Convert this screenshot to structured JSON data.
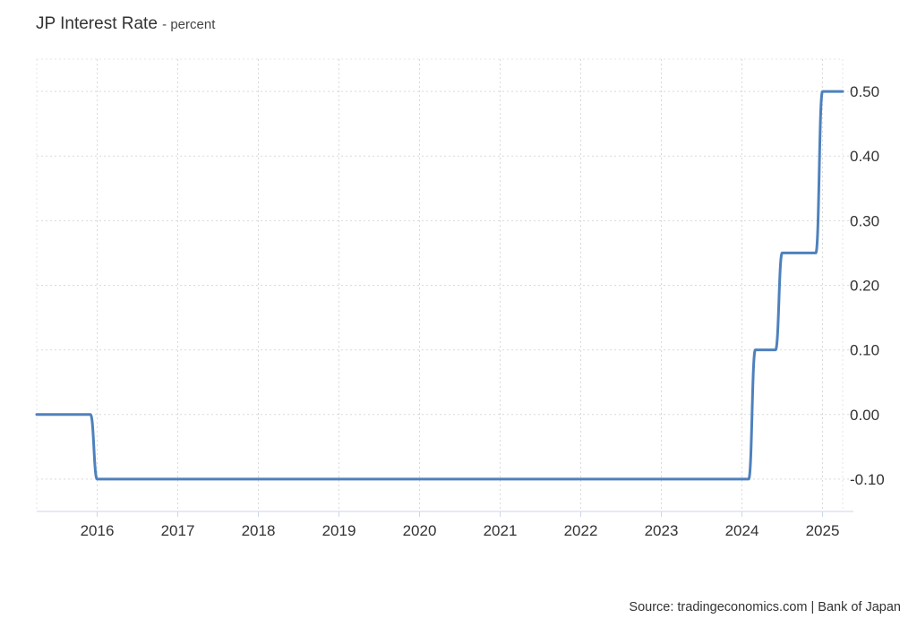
{
  "header": {
    "title": "JP Interest Rate",
    "unit": "- percent"
  },
  "footer": {
    "source": "Source: tradingeconomics.com | Bank of Japan"
  },
  "chart_data": {
    "type": "line",
    "title": "JP Interest Rate",
    "subtitle": "- percent",
    "xlabel": "",
    "ylabel": "",
    "x_range": [
      "2015-04",
      "2025-04"
    ],
    "ylim": [
      -0.15,
      0.55
    ],
    "y_ticks": [
      0.5,
      0.4,
      0.3,
      0.2,
      0.1,
      0.0,
      -0.1
    ],
    "y_tick_labels": [
      "0.50",
      "0.40",
      "0.30",
      "0.20",
      "0.10",
      "0.00",
      "-0.10"
    ],
    "x_tick_labels": [
      "2016",
      "2017",
      "2018",
      "2019",
      "2020",
      "2021",
      "2022",
      "2023",
      "2024",
      "2025"
    ],
    "grid": true,
    "line_color": "#4e81bd",
    "series": [
      {
        "points": [
          {
            "x": "2015-04",
            "y": 0.0
          },
          {
            "x": "2015-12",
            "y": 0.0
          },
          {
            "x": "2016-01",
            "y": -0.1
          },
          {
            "x": "2024-02",
            "y": -0.1
          },
          {
            "x": "2024-03",
            "y": 0.1
          },
          {
            "x": "2024-06",
            "y": 0.1
          },
          {
            "x": "2024-07",
            "y": 0.25
          },
          {
            "x": "2024-12",
            "y": 0.25
          },
          {
            "x": "2025-01",
            "y": 0.5
          },
          {
            "x": "2025-04",
            "y": 0.5
          }
        ]
      }
    ]
  }
}
